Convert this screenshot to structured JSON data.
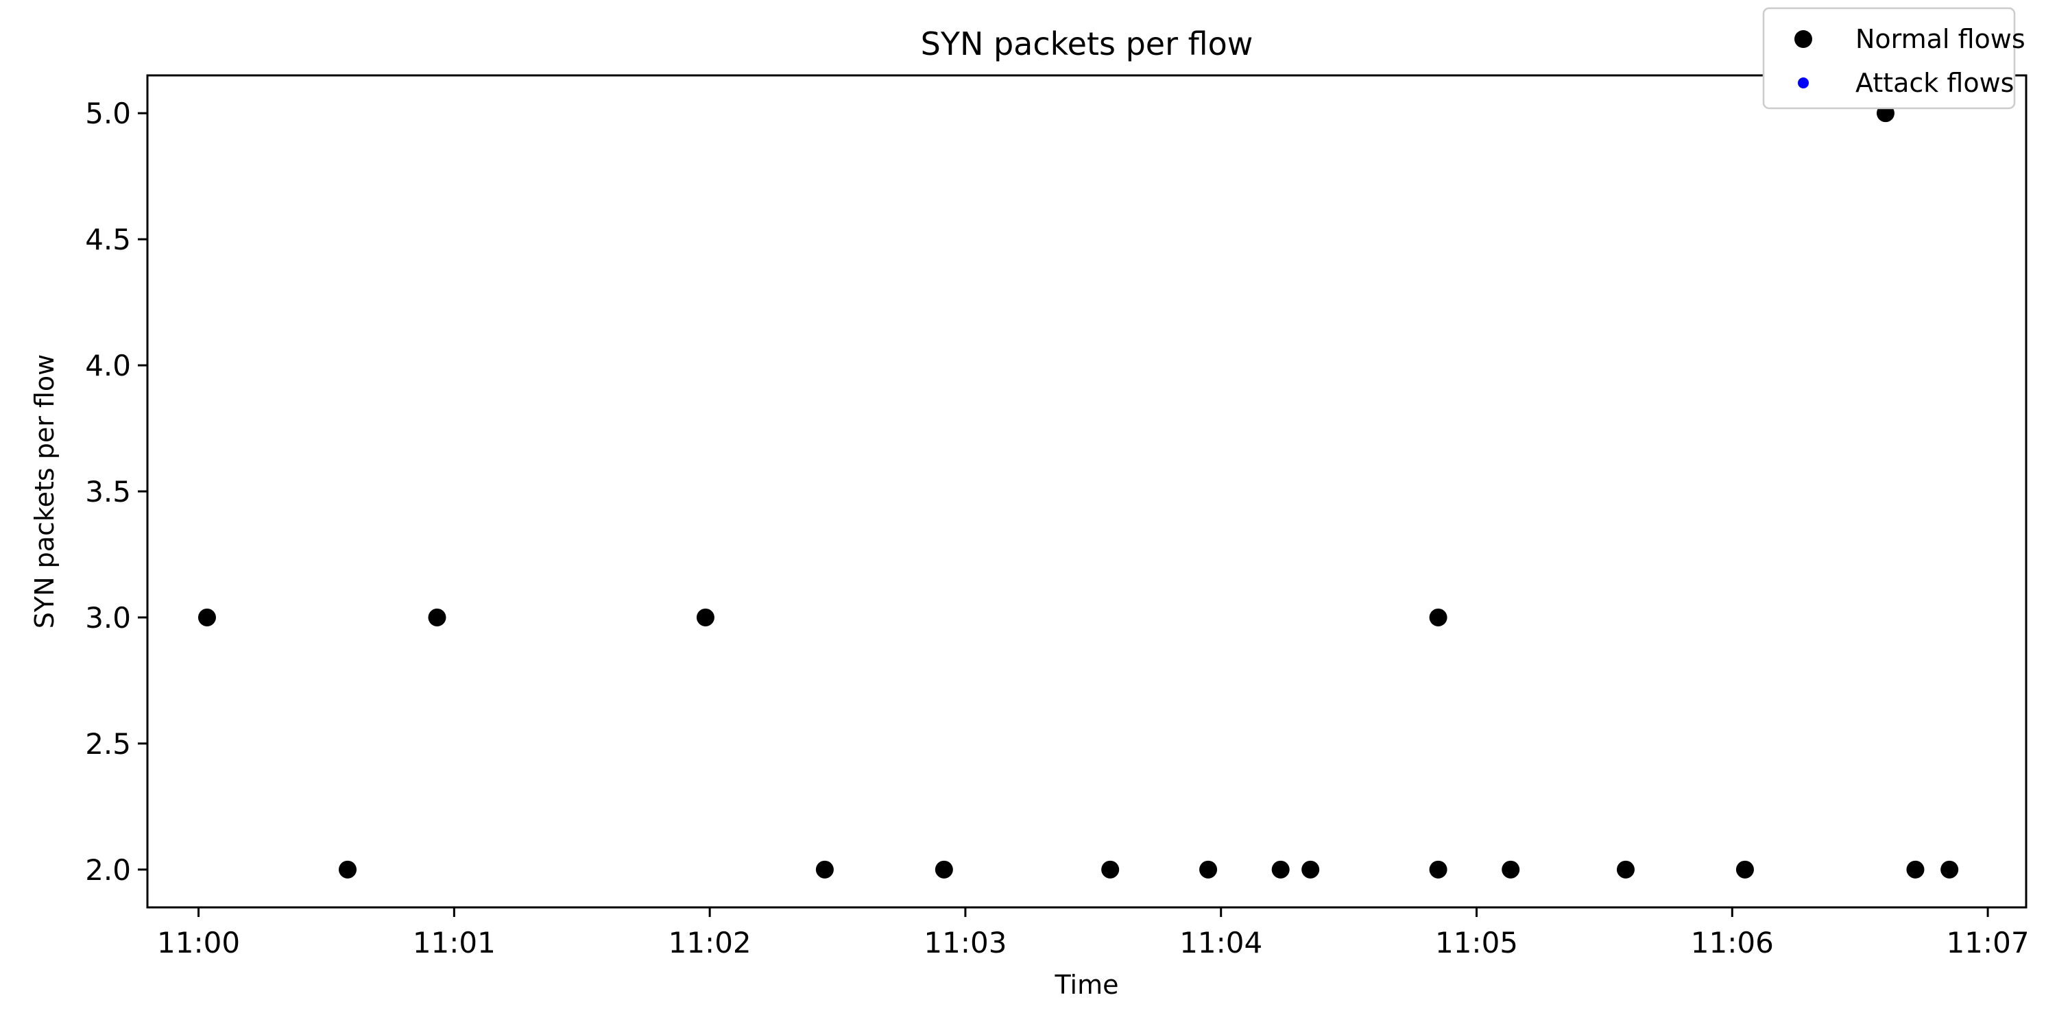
{
  "chart_data": {
    "type": "scatter",
    "title": "SYN packets per flow",
    "xlabel": "Time",
    "ylabel": "SYN packets per flow",
    "x_ticks": [
      "11:00",
      "11:01",
      "11:02",
      "11:03",
      "11:04",
      "11:05",
      "11:06",
      "11:07"
    ],
    "y_ticks": [
      "2.0",
      "2.5",
      "3.0",
      "3.5",
      "4.0",
      "4.5",
      "5.0"
    ],
    "xlim": [
      "10:59:48",
      "11:07:09"
    ],
    "ylim": [
      1.85,
      5.15
    ],
    "grid": false,
    "legend_position": "top-right",
    "series": [
      {
        "name": "Normal flows",
        "color": "#000000",
        "points": [
          {
            "x": "11:00:02",
            "y": 3
          },
          {
            "x": "11:00:35",
            "y": 2
          },
          {
            "x": "11:00:56",
            "y": 3
          },
          {
            "x": "11:01:59",
            "y": 3
          },
          {
            "x": "11:02:27",
            "y": 2
          },
          {
            "x": "11:02:55",
            "y": 2
          },
          {
            "x": "11:03:34",
            "y": 2
          },
          {
            "x": "11:03:57",
            "y": 2
          },
          {
            "x": "11:04:14",
            "y": 2
          },
          {
            "x": "11:04:21",
            "y": 2
          },
          {
            "x": "11:04:51",
            "y": 3
          },
          {
            "x": "11:04:51",
            "y": 2
          },
          {
            "x": "11:05:08",
            "y": 2
          },
          {
            "x": "11:05:35",
            "y": 2
          },
          {
            "x": "11:06:03",
            "y": 2
          },
          {
            "x": "11:06:36",
            "y": 5
          },
          {
            "x": "11:06:43",
            "y": 2
          },
          {
            "x": "11:06:51",
            "y": 2
          }
        ]
      },
      {
        "name": "Attack flows",
        "color": "#0000ff",
        "points": []
      }
    ]
  }
}
